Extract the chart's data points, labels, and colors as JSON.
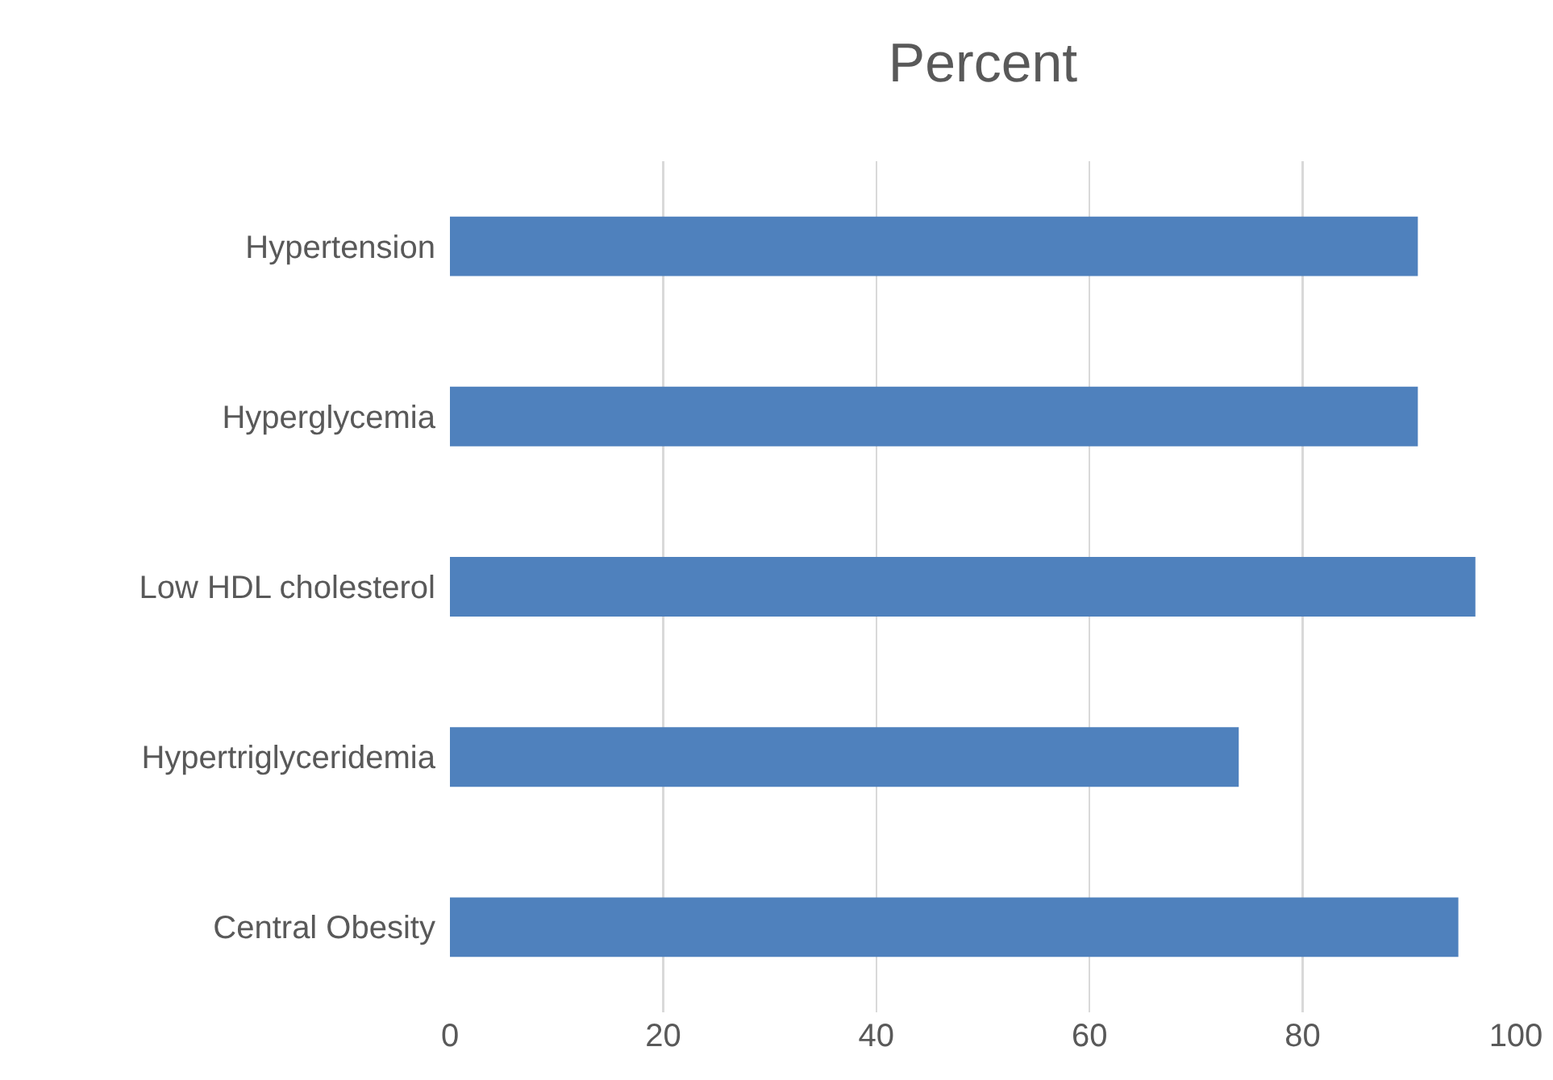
{
  "chart_data": {
    "type": "bar",
    "orientation": "horizontal",
    "title": "Percent",
    "categories": [
      "Hypertension",
      "Hyperglycemia",
      "Low HDL cholesterol",
      "Hypertriglyceridemia",
      "Central Obesity"
    ],
    "values": [
      90.8,
      90.8,
      96.2,
      74.0,
      94.6
    ],
    "color": "#4f81bd",
    "xlim": [
      0,
      100
    ],
    "xticks": [
      0,
      20,
      40,
      60,
      80,
      100
    ],
    "grid": "x"
  }
}
